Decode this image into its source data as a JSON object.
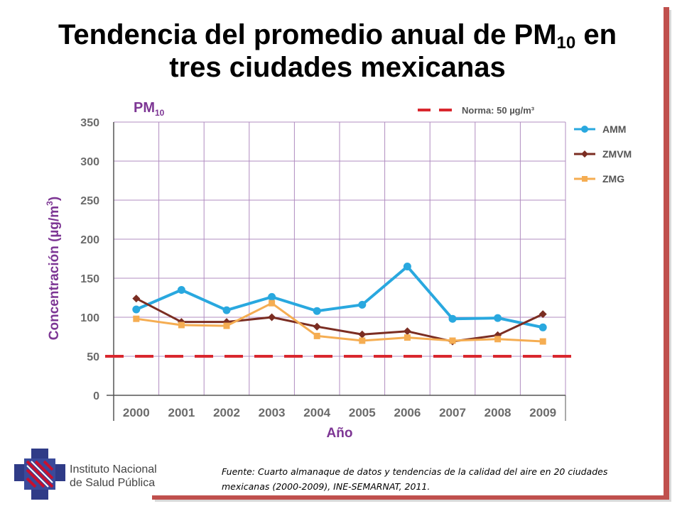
{
  "slide": {
    "title_main": "Tendencia del promedio anual de PM",
    "title_sub": "10",
    "title_rest": " en",
    "title_line2": "tres ciudades mexicanas"
  },
  "chart_data": {
    "type": "line",
    "title_main": "PM",
    "title_sub": "10",
    "xlabel": "Año",
    "ylabel_main": "Concentración (µg/m",
    "ylabel_sup": "3",
    "ylabel_end": ")",
    "ylim": [
      0,
      350
    ],
    "yticks": [
      0,
      50,
      100,
      150,
      200,
      250,
      300,
      350
    ],
    "categories": [
      "2000",
      "2001",
      "2002",
      "2003",
      "2004",
      "2005",
      "2006",
      "2007",
      "2008",
      "2009"
    ],
    "grid": true,
    "legend_position": "right",
    "series": [
      {
        "name": "AMM",
        "color": "#29a8df",
        "marker": "circle",
        "values": [
          110,
          135,
          109,
          126,
          108,
          116,
          165,
          98,
          99,
          87
        ]
      },
      {
        "name": "ZMVM",
        "color": "#7b2d22",
        "marker": "diamond",
        "values": [
          124,
          94,
          94,
          100,
          88,
          78,
          82,
          69,
          77,
          104
        ]
      },
      {
        "name": "ZMG",
        "color": "#f5ad52",
        "marker": "square",
        "values": [
          98,
          90,
          89,
          118,
          76,
          70,
          74,
          70,
          72,
          69
        ]
      }
    ],
    "reference_line": {
      "value": 50,
      "label": "Norma: 50 µg/m³",
      "color": "#d9272e"
    },
    "colors": {
      "grid": "#b08cc0",
      "axis_label": "#7d3694",
      "ticks": "#6b6b6b"
    }
  },
  "footer": {
    "institute_line1": "Instituto Nacional",
    "institute_line2": "de Salud Pública",
    "source_text": "Fuente: Cuarto almanaque de datos y tendencias de la calidad del aire en 20 ciudades mexicanas (2000-2009), INE-SEMARNAT,  2011."
  }
}
